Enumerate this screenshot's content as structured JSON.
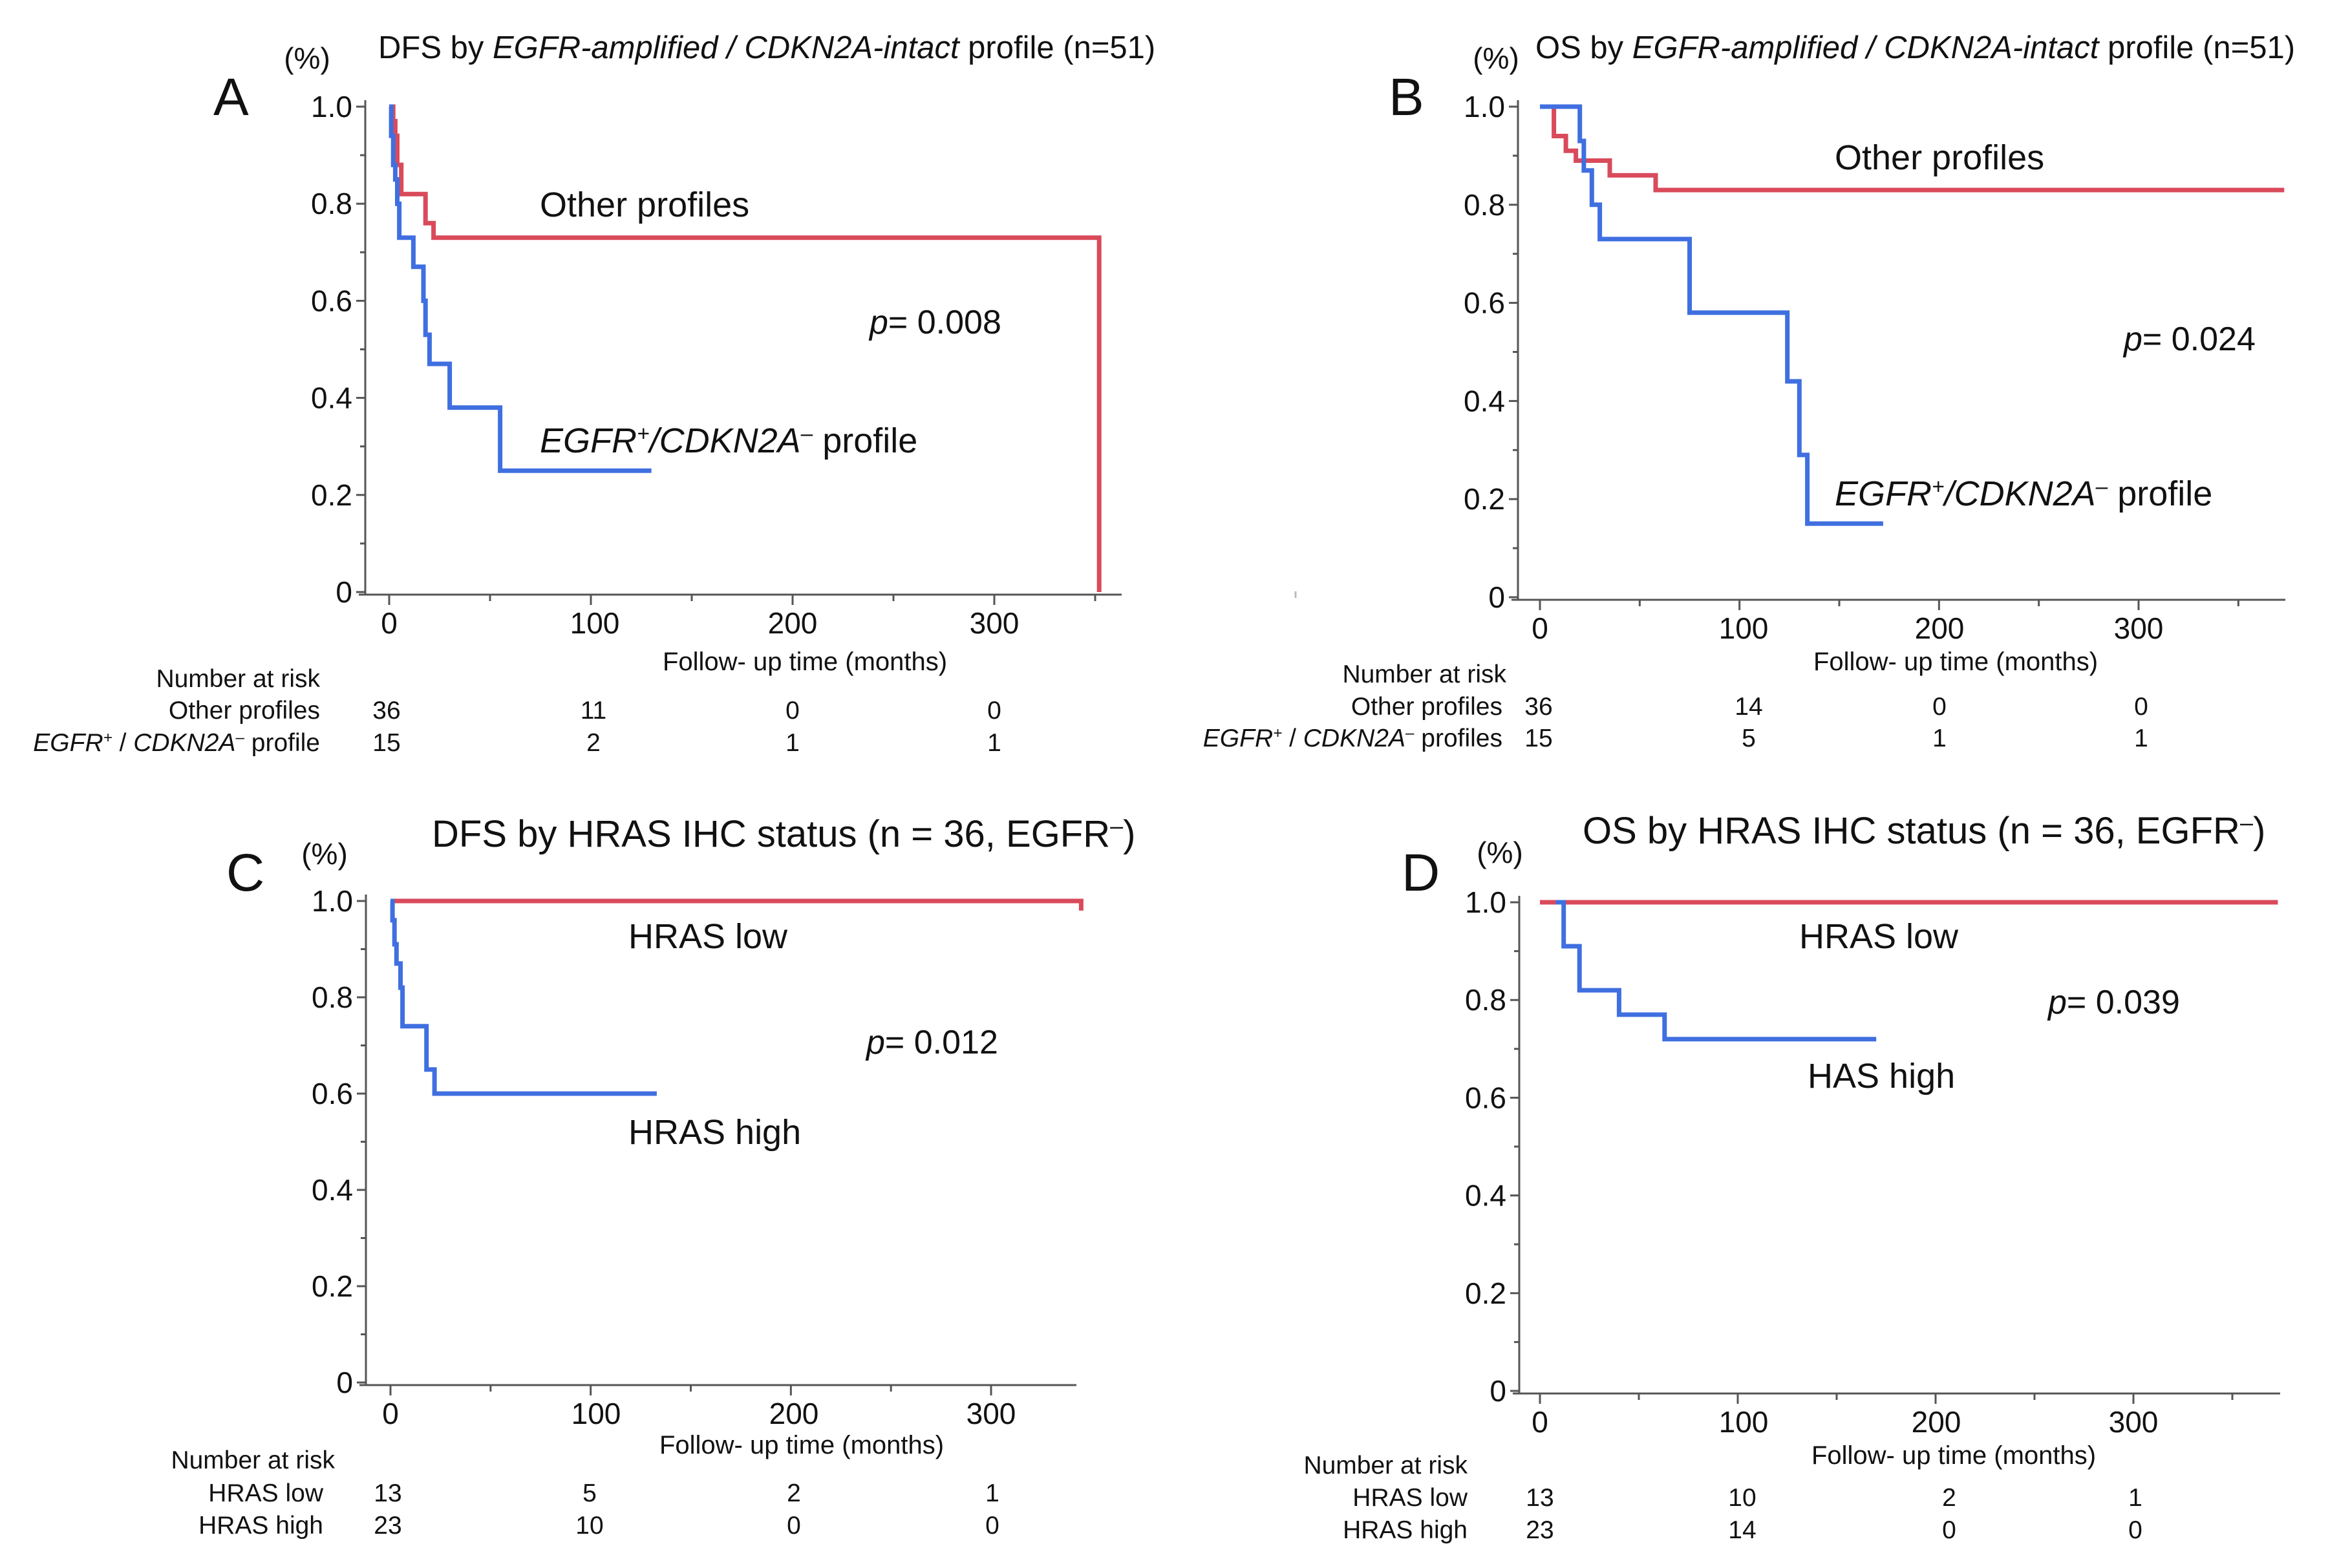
{
  "colors": {
    "other": "#d94a5b",
    "target": "#3f6fe0",
    "axis": "#555555",
    "text": "#111111"
  },
  "panels": [
    {
      "letter": "A",
      "title_parts": [
        {
          "t": "DFS by ",
          "i": false
        },
        {
          "t": "EGFR-amplified / CDKN2A-intact",
          "i": true
        },
        {
          "t": " profile (n=51)",
          "i": false
        }
      ],
      "unit": "(%)",
      "xlabel": "Follow- up time (months)",
      "yticks": [
        "1.0",
        "0.8",
        "0.6",
        "0.4",
        "0.2",
        "0"
      ],
      "xticks": [
        "0",
        "100",
        "200",
        "300"
      ],
      "p_label": "p",
      "p_value": "= 0.008",
      "labels": {
        "other": [
          {
            "t": "Other profiles",
            "i": false
          }
        ],
        "target": [
          {
            "t": "EGFR",
            "i": true
          },
          {
            "t": "+",
            "i": true,
            "sup": true
          },
          {
            "t": "/CDKN2A",
            "i": true
          },
          {
            "t": "–",
            "i": true,
            "sup": true
          },
          {
            "t": " profile",
            "i": false
          }
        ]
      },
      "risk": {
        "header": "Number at risk",
        "rows": [
          {
            "name_parts": [
              {
                "t": "Other profiles",
                "i": false
              }
            ],
            "values": [
              "36",
              "11",
              "0",
              "0"
            ]
          },
          {
            "name_parts": [
              {
                "t": "EGFR",
                "i": true
              },
              {
                "t": "+",
                "i": true,
                "sup": true
              },
              {
                "t": " / ",
                "i": false
              },
              {
                "t": "CDKN2A",
                "i": true
              },
              {
                "t": "–",
                "i": true,
                "sup": true
              },
              {
                "t": " profile",
                "i": false
              }
            ],
            "values": [
              "15",
              "2",
              "1",
              "1"
            ]
          }
        ]
      }
    },
    {
      "letter": "B",
      "title_parts": [
        {
          "t": "OS by ",
          "i": false
        },
        {
          "t": "EGFR-amplified / CDKN2A-intact",
          "i": true
        },
        {
          "t": " profile (n=51)",
          "i": false
        }
      ],
      "unit": "(%)",
      "xlabel": "Follow- up time (months)",
      "yticks": [
        "1.0",
        "0.8",
        "0.6",
        "0.4",
        "0.2",
        "0"
      ],
      "xticks": [
        "0",
        "100",
        "200",
        "300"
      ],
      "p_label": "p",
      "p_value": "= 0.024",
      "labels": {
        "other": [
          {
            "t": "Other profiles",
            "i": false
          }
        ],
        "target": [
          {
            "t": "EGFR",
            "i": true
          },
          {
            "t": "+",
            "i": true,
            "sup": true
          },
          {
            "t": "/CDKN2A",
            "i": true
          },
          {
            "t": "–",
            "i": true,
            "sup": true
          },
          {
            "t": " profile",
            "i": false
          }
        ]
      },
      "risk": {
        "header": "Number at risk",
        "rows": [
          {
            "name_parts": [
              {
                "t": "Other profiles",
                "i": false
              }
            ],
            "values": [
              "36",
              "14",
              "0",
              "0"
            ]
          },
          {
            "name_parts": [
              {
                "t": "EGFR",
                "i": true
              },
              {
                "t": "+",
                "i": true,
                "sup": true
              },
              {
                "t": " / ",
                "i": false
              },
              {
                "t": "CDKN2A",
                "i": true
              },
              {
                "t": "–",
                "i": true,
                "sup": true
              },
              {
                "t": " profiles",
                "i": false
              }
            ],
            "values": [
              "15",
              "5",
              "1",
              "1"
            ]
          }
        ]
      }
    },
    {
      "letter": "C",
      "title_parts": [
        {
          "t": "DFS by HRAS IHC status  (n = 36, EGFR",
          "i": false
        },
        {
          "t": "–",
          "i": false,
          "sup": true
        },
        {
          "t": ")",
          "i": false
        }
      ],
      "unit": "(%)",
      "xlabel": "Follow- up time (months)",
      "yticks": [
        "1.0",
        "0.8",
        "0.6",
        "0.4",
        "0.2",
        "0"
      ],
      "xticks": [
        "0",
        "100",
        "200",
        "300"
      ],
      "p_label": "p",
      "p_value": "= 0.012",
      "labels": {
        "other": [
          {
            "t": "HRAS low",
            "i": false
          }
        ],
        "target": [
          {
            "t": "HRAS high",
            "i": false
          }
        ]
      },
      "risk": {
        "header": "Number at risk",
        "rows": [
          {
            "name_parts": [
              {
                "t": "HRAS low",
                "i": false
              }
            ],
            "values": [
              "13",
              "5",
              "2",
              "1"
            ]
          },
          {
            "name_parts": [
              {
                "t": "HRAS high",
                "i": false
              }
            ],
            "values": [
              "23",
              "10",
              "0",
              "0"
            ]
          }
        ]
      }
    },
    {
      "letter": "D",
      "title_parts": [
        {
          "t": "OS by HRAS IHC status  (n = 36, EGFR",
          "i": false
        },
        {
          "t": "–",
          "i": false,
          "sup": true
        },
        {
          "t": ")",
          "i": false
        }
      ],
      "unit": "(%)",
      "xlabel": "Follow- up time (months)",
      "yticks": [
        "1.0",
        "0.8",
        "0.6",
        "0.4",
        "0.2",
        "0"
      ],
      "xticks": [
        "0",
        "100",
        "200",
        "300"
      ],
      "p_label": "p",
      "p_value": "= 0.039",
      "labels": {
        "other": [
          {
            "t": "HRAS low",
            "i": false
          }
        ],
        "target": [
          {
            "t": "HAS high",
            "i": false
          }
        ]
      },
      "risk": {
        "header": "Number at risk",
        "rows": [
          {
            "name_parts": [
              {
                "t": "HRAS low",
                "i": false
              }
            ],
            "values": [
              "13",
              "10",
              "2",
              "1"
            ]
          },
          {
            "name_parts": [
              {
                "t": "HRAS high",
                "i": false
              }
            ],
            "values": [
              "23",
              "14",
              "0",
              "0"
            ]
          }
        ]
      }
    }
  ],
  "chart_data": [
    {
      "type": "line",
      "step": true,
      "title": "DFS by EGFR-amplified / CDKN2A-intact profile (n=51)",
      "xlabel": "Follow- up time (months)",
      "ylabel": "(%)",
      "xlim": [
        0,
        370
      ],
      "ylim": [
        0,
        1.0
      ],
      "xticks": [
        0,
        100,
        200,
        300
      ],
      "yticks": [
        0,
        0.2,
        0.4,
        0.6,
        0.8,
        1.0
      ],
      "series": [
        {
          "name": "Other profiles",
          "x": [
            0,
            2,
            3,
            4,
            6,
            18,
            22,
            25,
            352,
            352
          ],
          "y": [
            1.0,
            0.97,
            0.94,
            0.88,
            0.82,
            0.76,
            0.73,
            0.73,
            0.73,
            0.0
          ]
        },
        {
          "name": "EGFR+/CDKN2A− profile",
          "x": [
            0,
            1,
            2,
            3,
            4,
            5,
            12,
            17,
            18,
            20,
            22,
            30,
            55,
            130
          ],
          "y": [
            1.0,
            0.94,
            0.88,
            0.85,
            0.8,
            0.73,
            0.67,
            0.6,
            0.53,
            0.47,
            0.47,
            0.38,
            0.25,
            0.25
          ]
        }
      ],
      "p_value": "p= 0.008",
      "number_at_risk": {
        "times": [
          0,
          100,
          200,
          300
        ],
        "Other profiles": [
          36,
          11,
          0,
          0
        ],
        "EGFR+ / CDKN2A− profile": [
          15,
          2,
          1,
          1
        ]
      }
    },
    {
      "type": "line",
      "step": true,
      "title": "OS by EGFR-amplified / CDKN2A-intact profile (n=51)",
      "xlabel": "Follow- up time (months)",
      "ylabel": "(%)",
      "xlim": [
        0,
        375
      ],
      "ylim": [
        0,
        1.0
      ],
      "xticks": [
        0,
        100,
        200,
        300
      ],
      "yticks": [
        0,
        0.2,
        0.4,
        0.6,
        0.8,
        1.0
      ],
      "series": [
        {
          "name": "Other profiles",
          "x": [
            0,
            7,
            13,
            18,
            35,
            58,
            373
          ],
          "y": [
            1.0,
            0.94,
            0.91,
            0.89,
            0.86,
            0.83,
            0.83
          ]
        },
        {
          "name": "EGFR+/CDKN2A− profile",
          "x": [
            0,
            20,
            22,
            26,
            30,
            75,
            124,
            130,
            134,
            172
          ],
          "y": [
            1.0,
            0.93,
            0.87,
            0.8,
            0.73,
            0.58,
            0.44,
            0.29,
            0.15,
            0.15
          ]
        }
      ],
      "p_value": "p= 0.024",
      "number_at_risk": {
        "times": [
          0,
          100,
          200,
          300
        ],
        "Other profiles": [
          36,
          14,
          0,
          0
        ],
        "EGFR+ / CDKN2A− profiles": [
          15,
          5,
          1,
          1
        ]
      }
    },
    {
      "type": "line",
      "step": true,
      "title": "DFS by HRAS IHC status (n = 36, EGFR−)",
      "xlabel": "Follow- up time (months)",
      "ylabel": "(%)",
      "xlim": [
        0,
        370
      ],
      "ylim": [
        0,
        1.0
      ],
      "xticks": [
        0,
        100,
        200,
        300
      ],
      "yticks": [
        0,
        0.2,
        0.4,
        0.6,
        0.8,
        1.0
      ],
      "series": [
        {
          "name": "HRAS low",
          "x": [
            0,
            345,
            345
          ],
          "y": [
            1.0,
            1.0,
            0.98
          ]
        },
        {
          "name": "HRAS high",
          "x": [
            0,
            1,
            2,
            3,
            5,
            6,
            18,
            22,
            133
          ],
          "y": [
            1.0,
            0.96,
            0.91,
            0.87,
            0.82,
            0.74,
            0.65,
            0.6,
            0.6
          ]
        }
      ],
      "p_value": "p= 0.012",
      "number_at_risk": {
        "times": [
          0,
          100,
          200,
          300
        ],
        "HRAS low": [
          13,
          5,
          2,
          1
        ],
        "HRAS high": [
          23,
          10,
          0,
          0
        ]
      }
    },
    {
      "type": "line",
      "step": true,
      "title": "OS by HRAS IHC status (n = 36, EGFR−)",
      "xlabel": "Follow- up time (months)",
      "ylabel": "(%)",
      "xlim": [
        0,
        375
      ],
      "ylim": [
        0,
        1.0
      ],
      "xticks": [
        0,
        100,
        200,
        300
      ],
      "yticks": [
        0,
        0.2,
        0.4,
        0.6,
        0.8,
        1.0
      ],
      "series": [
        {
          "name": "HRAS low",
          "x": [
            0,
            373
          ],
          "y": [
            1.0,
            1.0
          ]
        },
        {
          "name": "HAS high",
          "x": [
            8,
            12,
            20,
            40,
            63,
            170
          ],
          "y": [
            1.0,
            0.91,
            0.82,
            0.77,
            0.72,
            0.72
          ]
        }
      ],
      "p_value": "p= 0.039",
      "number_at_risk": {
        "times": [
          0,
          100,
          200,
          300
        ],
        "HRAS low": [
          13,
          10,
          2,
          1
        ],
        "HRAS high": [
          23,
          14,
          0,
          0
        ]
      }
    }
  ]
}
